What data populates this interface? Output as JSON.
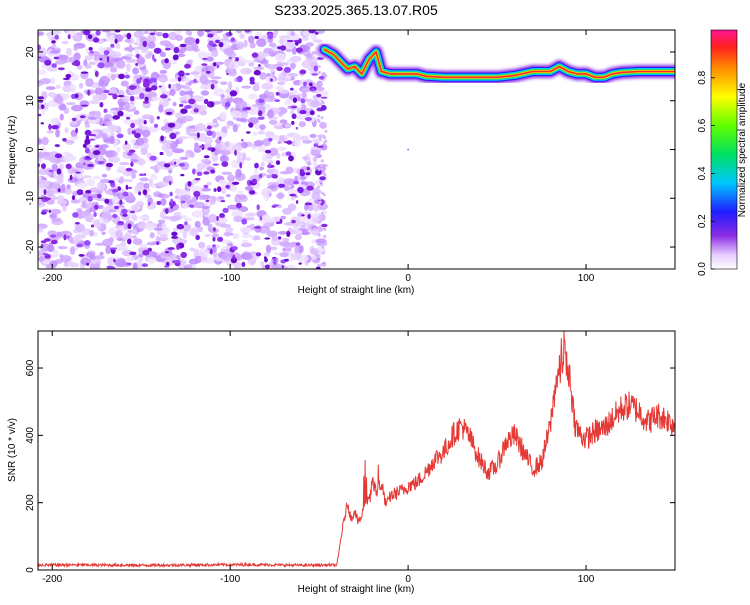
{
  "title": "S233.2025.365.13.07.R05",
  "chart_data": [
    {
      "type": "heatmap",
      "xlabel": "Height of straight line (km)",
      "ylabel": "Frequency (Hz)",
      "xlim": [
        -208,
        150
      ],
      "ylim": [
        -24.5,
        24.5
      ],
      "xticks": [
        -200,
        -100,
        0,
        100
      ],
      "yticks": [
        -20,
        -10,
        0,
        10,
        20
      ],
      "noise_region_x": [
        -208,
        -47
      ],
      "signal_track": {
        "x": [
          -47,
          -42,
          -38,
          -34,
          -30,
          -26,
          -22,
          -18,
          -15,
          -10,
          -5,
          0,
          5,
          10,
          20,
          30,
          40,
          50,
          60,
          70,
          80,
          85,
          90,
          95,
          100,
          105,
          110,
          115,
          120,
          130,
          140,
          150
        ],
        "y": [
          20.5,
          19.5,
          18.0,
          16.5,
          17.0,
          15.5,
          18.5,
          20.0,
          16.0,
          15.5,
          15.5,
          15.5,
          15.5,
          15.0,
          14.8,
          14.8,
          14.8,
          14.8,
          15.2,
          16.0,
          16.0,
          17.0,
          16.0,
          15.5,
          15.5,
          14.8,
          14.8,
          15.5,
          15.8,
          16.0,
          16.0,
          16.0
        ]
      },
      "colorbar": {
        "label": "Normalized spectral amplitude",
        "range": [
          0,
          1
        ],
        "ticks": [
          0,
          0.2,
          0.4,
          0.6,
          0.8
        ]
      }
    },
    {
      "type": "line",
      "xlabel": "Height of straight line (km)",
      "ylabel": "SNR (10 * v/v)",
      "xlim": [
        -208,
        150
      ],
      "ylim": [
        0,
        710
      ],
      "xticks": [
        -200,
        -100,
        0,
        100
      ],
      "yticks": [
        0,
        200,
        400,
        600
      ],
      "color": "#e53935",
      "series": [
        {
          "x": [
            -208,
            -180,
            -150,
            -120,
            -90,
            -60,
            -40,
            -37,
            -34,
            -32,
            -30,
            -28,
            -26,
            -24,
            -22,
            -20,
            -18,
            -16,
            -14,
            -12,
            -10,
            -6,
            -2,
            0,
            5,
            10,
            15,
            20,
            25,
            30,
            35,
            40,
            45,
            50,
            55,
            60,
            65,
            70,
            75,
            80,
            83,
            86,
            88,
            90,
            92,
            94,
            97,
            100,
            105,
            110,
            115,
            120,
            125,
            130,
            135,
            140,
            145,
            150
          ],
          "y": [
            15,
            15,
            14,
            15,
            16,
            14,
            15,
            120,
            200,
            150,
            180,
            140,
            160,
            210,
            200,
            260,
            230,
            250,
            230,
            190,
            220,
            230,
            240,
            250,
            260,
            290,
            330,
            350,
            400,
            430,
            390,
            330,
            290,
            310,
            380,
            400,
            350,
            300,
            320,
            430,
            560,
            600,
            650,
            560,
            520,
            430,
            400,
            390,
            410,
            420,
            450,
            480,
            490,
            470,
            440,
            460,
            450,
            430
          ]
        }
      ]
    }
  ]
}
